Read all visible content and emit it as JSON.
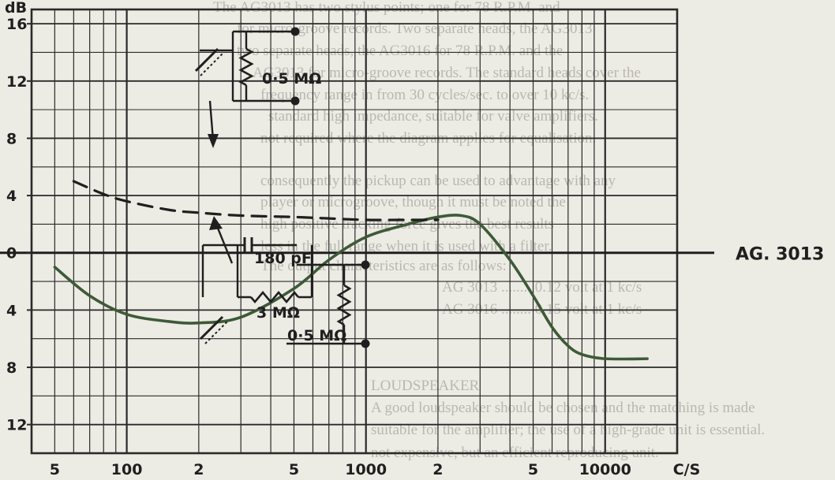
{
  "background_text": [
    "The AG3013 has two stylus points; one for 78 R.P.M. and",
    "for micro-groove records. Two separate heads, the AG3013",
    "two separate heads, the AG3016 for 78 R.P.M. and the",
    "AG3013 for micro-groove records. The standard heads cover the",
    "frequency range in from 30 cycles/sec. to over 10 kc/s.",
    "standard high impedance, suitable for valve amplifiers.",
    "not required where the diagram applies for equalisation.",
    "consequently the pickup can be used to advantage with any",
    "player or microgroove, though it must be noted the",
    "high positive tracking force gives the best results",
    "less in the full range when it is used with a filter.",
    "The output characteristics are as follows:",
    "AG 3013 ........ 0.12 volt at 1 kc/s",
    "AG 3016 ........ 0.15 volt at 1 kc/s",
    "LOUDSPEAKER",
    "A good loudspeaker should be chosen and the matching is made",
    "suitable for the amplifier; the use of a high-grade unit is essential.",
    "not expensive, but an efficient reproducing unit."
  ],
  "chart_data": {
    "type": "line",
    "title": "",
    "xlabel": "C/S",
    "ylabel": "dB",
    "xscale": "log",
    "xlim": [
      40,
      20000
    ],
    "ylim": [
      17,
      -14
    ],
    "y_direction": "0 at center; values above 0 drawn upward, lower labels 4-16 drawn downward",
    "grid": true,
    "x_ticks": [
      {
        "value": 50,
        "label": "5"
      },
      {
        "value": 100,
        "label": "100"
      },
      {
        "value": 200,
        "label": "2"
      },
      {
        "value": 500,
        "label": "5"
      },
      {
        "value": 1000,
        "label": "1000"
      },
      {
        "value": 2000,
        "label": "2"
      },
      {
        "value": 5000,
        "label": "5"
      },
      {
        "value": 10000,
        "label": "10000"
      }
    ],
    "x_unit_label": "C/S",
    "y_ticks": [
      {
        "value": -12,
        "label": "12"
      },
      {
        "value": -8,
        "label": "8"
      },
      {
        "value": -4,
        "label": "4"
      },
      {
        "value": 0,
        "label": "0"
      },
      {
        "value": 4,
        "label": "4"
      },
      {
        "value": 8,
        "label": "8"
      },
      {
        "value": 12,
        "label": "12"
      },
      {
        "value": 16,
        "label": "16"
      }
    ],
    "series": [
      {
        "name": "AG. 3013",
        "style": "solid",
        "color": "#3d5a37",
        "x": [
          50,
          70,
          100,
          150,
          200,
          300,
          500,
          700,
          1000,
          1500,
          2000,
          2500,
          3000,
          4000,
          5000,
          6000,
          7000,
          8000,
          10000,
          15000
        ],
        "y": [
          -1.0,
          -3.0,
          -4.3,
          -4.8,
          -4.9,
          -4.5,
          -2.5,
          -0.5,
          1.1,
          2.0,
          2.5,
          2.6,
          2.0,
          -0.5,
          -3.0,
          -5.2,
          -6.5,
          -7.1,
          -7.4,
          -7.4
        ]
      },
      {
        "name": "",
        "style": "dashed",
        "color": "#1f1f1f",
        "x": [
          60,
          80,
          100,
          150,
          200,
          300,
          500,
          700,
          1000,
          1500,
          2000
        ],
        "y": [
          5.0,
          4.1,
          3.6,
          3.0,
          2.8,
          2.6,
          2.5,
          2.4,
          2.3,
          2.3,
          2.3
        ]
      }
    ],
    "annotations": {
      "circuit_top_resistor": "0·5 MΩ",
      "circuit_bottom_capacitor": "180 pF",
      "circuit_bottom_series_resistor": "3 MΩ",
      "circuit_bottom_shunt_resistor": "0·5 MΩ",
      "curve_label": "AG. 3013"
    }
  }
}
